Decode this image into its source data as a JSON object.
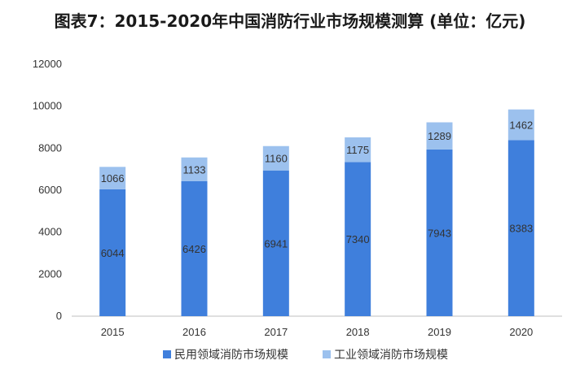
{
  "title": "图表7：2015-2020年中国消防行业市场规模测算 (单位：亿元)",
  "colors": {
    "civil": "#3f7fdc",
    "industrial": "#9cc1ee",
    "axis": "#bfbfbf"
  },
  "chart_data": {
    "type": "bar",
    "stacked": true,
    "categories": [
      "2015",
      "2016",
      "2017",
      "2018",
      "2019",
      "2020"
    ],
    "series": [
      {
        "name": "民用领域消防市场规模",
        "values": [
          6044,
          6426,
          6941,
          7340,
          7943,
          8383
        ]
      },
      {
        "name": "工业领域消防市场规模",
        "values": [
          1066,
          1133,
          1160,
          1175,
          1289,
          1462
        ]
      }
    ],
    "ylim": [
      0,
      12000
    ],
    "yticks": [
      "0",
      "2000",
      "4000",
      "6000",
      "8000",
      "10000",
      "12000"
    ],
    "grid": false,
    "legend_position": "bottom"
  }
}
